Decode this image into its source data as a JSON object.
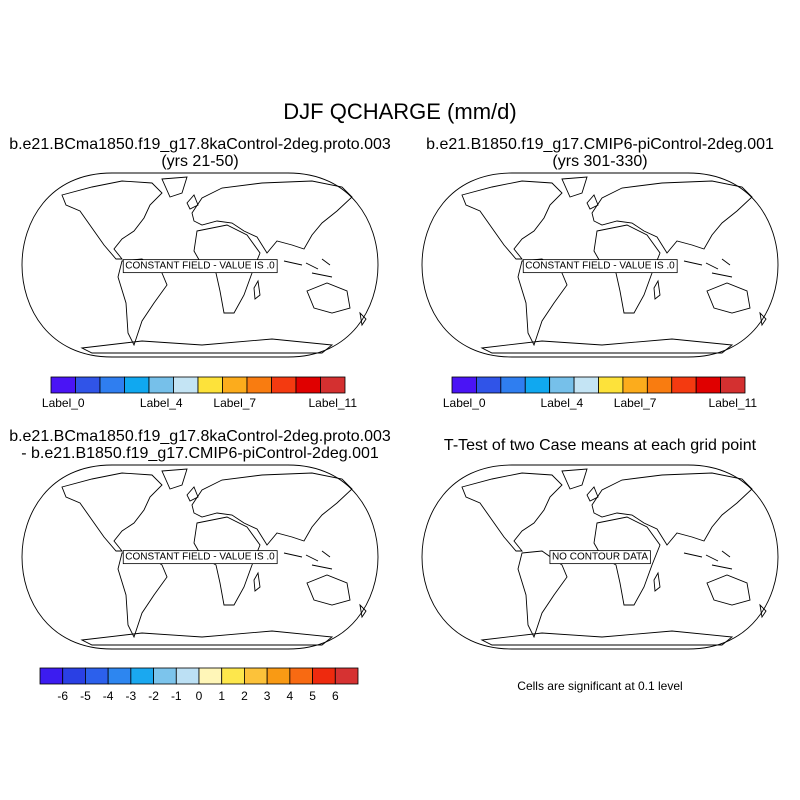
{
  "title": "DJF QCHARGE (mm/d)",
  "panels": [
    {
      "title": [
        "b.e21.BCma1850.f19_g17.8kaControl-2deg.proto.003",
        "(yrs 21-50)"
      ],
      "message": "CONSTANT FIELD - VALUE IS .0",
      "colorbar": {
        "colors": [
          "#4a14f5",
          "#3054e8",
          "#2f7ef0",
          "#10a8f0",
          "#76c0ea",
          "#c4e4f4",
          "#fde23a",
          "#fcac1c",
          "#f97c10",
          "#f43a10",
          "#e00000",
          "#d43030"
        ],
        "labels": [
          "Label_0",
          null,
          null,
          null,
          "Label_4",
          null,
          null,
          "Label_7",
          null,
          null,
          null,
          "Label_11"
        ]
      }
    },
    {
      "title": [
        "b.e21.B1850.f19_g17.CMIP6-piControl-2deg.001",
        "(yrs 301-330)"
      ],
      "message": "CONSTANT FIELD - VALUE IS .0",
      "colorbar": {
        "colors": [
          "#4a14f5",
          "#3054e8",
          "#2f7ef0",
          "#10a8f0",
          "#76c0ea",
          "#c4e4f4",
          "#fde23a",
          "#fcac1c",
          "#f97c10",
          "#f43a10",
          "#e00000",
          "#d43030"
        ],
        "labels": [
          "Label_0",
          null,
          null,
          null,
          "Label_4",
          null,
          null,
          "Label_7",
          null,
          null,
          null,
          "Label_11"
        ]
      }
    },
    {
      "title": [
        "b.e21.BCma1850.f19_g17.8kaControl-2deg.proto.003",
        "- b.e21.B1850.f19_g17.CMIP6-piControl-2deg.001"
      ],
      "message": "CONSTANT FIELD - VALUE IS .0",
      "colorbar": {
        "colors": [
          "#3c1cf0",
          "#2a40e4",
          "#2c60ec",
          "#2d86f0",
          "#1aa8f0",
          "#7cc4ec",
          "#bce0f4",
          "#fff6b8",
          "#fde74c",
          "#fcc23a",
          "#f99a14",
          "#f86a12",
          "#ee2a0e",
          "#d63232"
        ],
        "ticks": [
          -6,
          -5,
          -4,
          -3,
          -2,
          -1,
          0,
          1,
          2,
          3,
          4,
          5,
          6
        ]
      }
    },
    {
      "title": [
        "T-Test of two Case means at each grid point"
      ],
      "message": "NO CONTOUR DATA",
      "note": "Cells are significant at 0.1 level"
    }
  ]
}
